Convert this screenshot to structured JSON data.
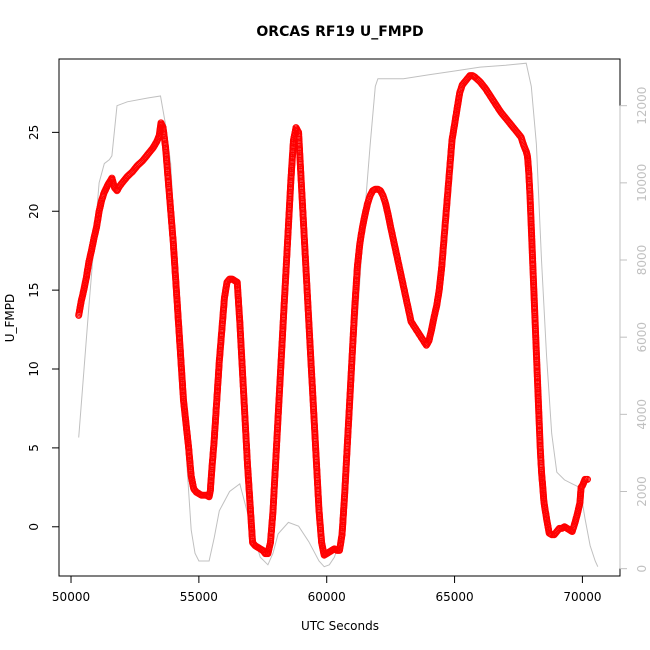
{
  "chart_data": {
    "type": "scatter",
    "title": "ORCAS RF19 U_FMPD",
    "xlabel": "UTC Seconds",
    "ylabel": "U_FMPD",
    "xlim": [
      49530,
      71470
    ],
    "ylim": [
      -3.12,
      29.65
    ],
    "y2lim": [
      -190,
      13210
    ],
    "x_ticks": [
      50000,
      55000,
      60000,
      65000,
      70000
    ],
    "x_tick_labels": [
      "50000",
      "55000",
      "60000",
      "65000",
      "70000"
    ],
    "y_ticks": [
      0,
      5,
      10,
      15,
      20,
      25
    ],
    "y_tick_labels": [
      "0",
      "5",
      "10",
      "15",
      "20",
      "25"
    ],
    "y2_ticks": [
      0,
      2000,
      4000,
      6000,
      8000,
      10000,
      12000
    ],
    "y2_tick_labels": [
      "0",
      "2000",
      "4000",
      "6000",
      "8000",
      "10000",
      "12000"
    ],
    "grid": false,
    "series": [
      {
        "axis": "left",
        "style": "open-circles",
        "color": "#ff0000",
        "points": [
          [
            50300,
            13.4
          ],
          [
            50400,
            14.3
          ],
          [
            50500,
            15.0
          ],
          [
            50600,
            15.8
          ],
          [
            50700,
            16.8
          ],
          [
            50800,
            17.5
          ],
          [
            50900,
            18.3
          ],
          [
            51000,
            19.0
          ],
          [
            51100,
            20.0
          ],
          [
            51200,
            20.7
          ],
          [
            51300,
            21.2
          ],
          [
            51450,
            21.7
          ],
          [
            51600,
            22.1
          ],
          [
            51700,
            21.5
          ],
          [
            51800,
            21.3
          ],
          [
            51900,
            21.6
          ],
          [
            52000,
            21.8
          ],
          [
            52200,
            22.2
          ],
          [
            52400,
            22.5
          ],
          [
            52600,
            22.9
          ],
          [
            52800,
            23.2
          ],
          [
            53000,
            23.6
          ],
          [
            53200,
            24.0
          ],
          [
            53350,
            24.4
          ],
          [
            53450,
            24.8
          ],
          [
            53520,
            25.6
          ],
          [
            53600,
            25.3
          ],
          [
            53700,
            24.0
          ],
          [
            53800,
            22.0
          ],
          [
            53900,
            20.0
          ],
          [
            54000,
            18.0
          ],
          [
            54100,
            15.5
          ],
          [
            54200,
            13.0
          ],
          [
            54300,
            10.5
          ],
          [
            54400,
            8.0
          ],
          [
            54500,
            6.5
          ],
          [
            54600,
            5.0
          ],
          [
            54700,
            3.2
          ],
          [
            54800,
            2.4
          ],
          [
            54900,
            2.2
          ],
          [
            55000,
            2.1
          ],
          [
            55100,
            2.0
          ],
          [
            55200,
            2.0
          ],
          [
            55300,
            2.0
          ],
          [
            55400,
            1.9
          ],
          [
            55450,
            2.3
          ],
          [
            55500,
            3.5
          ],
          [
            55600,
            5.5
          ],
          [
            55700,
            8.0
          ],
          [
            55800,
            10.5
          ],
          [
            55900,
            12.5
          ],
          [
            56000,
            14.5
          ],
          [
            56100,
            15.5
          ],
          [
            56200,
            15.7
          ],
          [
            56300,
            15.7
          ],
          [
            56400,
            15.6
          ],
          [
            56500,
            15.5
          ],
          [
            56600,
            13.0
          ],
          [
            56700,
            10.0
          ],
          [
            56800,
            7.0
          ],
          [
            56900,
            4.0
          ],
          [
            57000,
            1.5
          ],
          [
            57100,
            -1.0
          ],
          [
            57200,
            -1.2
          ],
          [
            57300,
            -1.3
          ],
          [
            57400,
            -1.4
          ],
          [
            57500,
            -1.5
          ],
          [
            57600,
            -1.7
          ],
          [
            57700,
            -1.7
          ],
          [
            57800,
            -1.0
          ],
          [
            57900,
            1.0
          ],
          [
            58000,
            4.0
          ],
          [
            58100,
            7.0
          ],
          [
            58200,
            10.0
          ],
          [
            58300,
            13.0
          ],
          [
            58400,
            16.0
          ],
          [
            58500,
            19.0
          ],
          [
            58600,
            22.0
          ],
          [
            58700,
            24.5
          ],
          [
            58800,
            25.3
          ],
          [
            58900,
            25.0
          ],
          [
            59000,
            22.0
          ],
          [
            59100,
            19.0
          ],
          [
            59200,
            16.0
          ],
          [
            59300,
            13.0
          ],
          [
            59400,
            10.0
          ],
          [
            59500,
            7.0
          ],
          [
            59600,
            4.0
          ],
          [
            59700,
            1.0
          ],
          [
            59800,
            -1.0
          ],
          [
            59900,
            -1.8
          ],
          [
            60000,
            -1.7
          ],
          [
            60100,
            -1.6
          ],
          [
            60200,
            -1.5
          ],
          [
            60300,
            -1.4
          ],
          [
            60400,
            -1.5
          ],
          [
            60500,
            -1.5
          ],
          [
            60600,
            -0.5
          ],
          [
            60700,
            2.0
          ],
          [
            60800,
            5.0
          ],
          [
            60900,
            8.0
          ],
          [
            61000,
            11.0
          ],
          [
            61100,
            14.0
          ],
          [
            61200,
            16.5
          ],
          [
            61300,
            18.0
          ],
          [
            61400,
            19.0
          ],
          [
            61500,
            19.8
          ],
          [
            61600,
            20.5
          ],
          [
            61700,
            21.0
          ],
          [
            61800,
            21.3
          ],
          [
            61900,
            21.4
          ],
          [
            62000,
            21.4
          ],
          [
            62100,
            21.3
          ],
          [
            62200,
            21.0
          ],
          [
            62300,
            20.5
          ],
          [
            62400,
            19.8
          ],
          [
            62500,
            19.0
          ],
          [
            62700,
            17.5
          ],
          [
            62900,
            16.0
          ],
          [
            63100,
            14.5
          ],
          [
            63300,
            13.0
          ],
          [
            63500,
            12.5
          ],
          [
            63700,
            12.0
          ],
          [
            63900,
            11.5
          ],
          [
            64000,
            11.8
          ],
          [
            64100,
            12.5
          ],
          [
            64200,
            13.3
          ],
          [
            64300,
            14.0
          ],
          [
            64400,
            15.0
          ],
          [
            64500,
            16.5
          ],
          [
            64600,
            18.5
          ],
          [
            64700,
            20.5
          ],
          [
            64800,
            22.5
          ],
          [
            64900,
            24.5
          ],
          [
            65000,
            25.5
          ],
          [
            65100,
            26.5
          ],
          [
            65200,
            27.5
          ],
          [
            65300,
            28.0
          ],
          [
            65400,
            28.2
          ],
          [
            65500,
            28.4
          ],
          [
            65600,
            28.6
          ],
          [
            65700,
            28.6
          ],
          [
            65800,
            28.5
          ],
          [
            66000,
            28.2
          ],
          [
            66200,
            27.8
          ],
          [
            66400,
            27.3
          ],
          [
            66600,
            26.8
          ],
          [
            66800,
            26.3
          ],
          [
            67000,
            25.9
          ],
          [
            67200,
            25.5
          ],
          [
            67400,
            25.1
          ],
          [
            67600,
            24.7
          ],
          [
            67700,
            24.2
          ],
          [
            67800,
            23.8
          ],
          [
            67850,
            23.5
          ],
          [
            67900,
            22.5
          ],
          [
            67950,
            21.0
          ],
          [
            68000,
            19.0
          ],
          [
            68050,
            17.0
          ],
          [
            68100,
            15.0
          ],
          [
            68150,
            13.0
          ],
          [
            68200,
            11.0
          ],
          [
            68250,
            9.0
          ],
          [
            68300,
            7.0
          ],
          [
            68350,
            5.0
          ],
          [
            68400,
            3.5
          ],
          [
            68450,
            2.5
          ],
          [
            68500,
            1.5
          ],
          [
            68600,
            0.5
          ],
          [
            68700,
            -0.4
          ],
          [
            68800,
            -0.5
          ],
          [
            68900,
            -0.5
          ],
          [
            69000,
            -0.3
          ],
          [
            69100,
            -0.1
          ],
          [
            69200,
            -0.1
          ],
          [
            69300,
            0.0
          ],
          [
            69400,
            -0.1
          ],
          [
            69500,
            -0.2
          ],
          [
            69600,
            -0.3
          ],
          [
            69700,
            0.2
          ],
          [
            69800,
            0.8
          ],
          [
            69900,
            1.5
          ],
          [
            69950,
            2.5
          ],
          [
            70000,
            2.6
          ],
          [
            70050,
            2.8
          ],
          [
            70100,
            3.0
          ],
          [
            70200,
            3.0
          ]
        ]
      },
      {
        "axis": "right",
        "style": "line",
        "color": "#c0c0c0",
        "points": [
          [
            50300,
            3400
          ],
          [
            50700,
            6800
          ],
          [
            51100,
            10000
          ],
          [
            51300,
            10500
          ],
          [
            51500,
            10600
          ],
          [
            51600,
            10700
          ],
          [
            51800,
            12000
          ],
          [
            52200,
            12100
          ],
          [
            53000,
            12200
          ],
          [
            53500,
            12250
          ],
          [
            53700,
            11500
          ],
          [
            53900,
            10500
          ],
          [
            54100,
            8000
          ],
          [
            54300,
            5500
          ],
          [
            54500,
            3000
          ],
          [
            54700,
            1000
          ],
          [
            54850,
            400
          ],
          [
            55000,
            200
          ],
          [
            55200,
            200
          ],
          [
            55400,
            200
          ],
          [
            55600,
            800
          ],
          [
            55800,
            1500
          ],
          [
            56200,
            2000
          ],
          [
            56600,
            2200
          ],
          [
            57000,
            1200
          ],
          [
            57400,
            300
          ],
          [
            57700,
            100
          ],
          [
            57900,
            400
          ],
          [
            58100,
            900
          ],
          [
            58500,
            1200
          ],
          [
            58900,
            1100
          ],
          [
            59300,
            700
          ],
          [
            59700,
            200
          ],
          [
            59900,
            50
          ],
          [
            60100,
            100
          ],
          [
            60300,
            300
          ],
          [
            60500,
            700
          ],
          [
            60800,
            2500
          ],
          [
            61100,
            5500
          ],
          [
            61400,
            8500
          ],
          [
            61700,
            11000
          ],
          [
            61900,
            12500
          ],
          [
            62000,
            12700
          ],
          [
            62300,
            12700
          ],
          [
            63000,
            12700
          ],
          [
            64000,
            12800
          ],
          [
            65000,
            12900
          ],
          [
            66000,
            13000
          ],
          [
            67000,
            13050
          ],
          [
            67800,
            13100
          ],
          [
            68000,
            12500
          ],
          [
            68200,
            11000
          ],
          [
            68400,
            8000
          ],
          [
            68600,
            5500
          ],
          [
            68800,
            3500
          ],
          [
            69000,
            2500
          ],
          [
            69300,
            2300
          ],
          [
            69600,
            2200
          ],
          [
            69900,
            2100
          ],
          [
            70100,
            1300
          ],
          [
            70300,
            600
          ],
          [
            70500,
            200
          ],
          [
            70600,
            50
          ]
        ]
      }
    ]
  }
}
